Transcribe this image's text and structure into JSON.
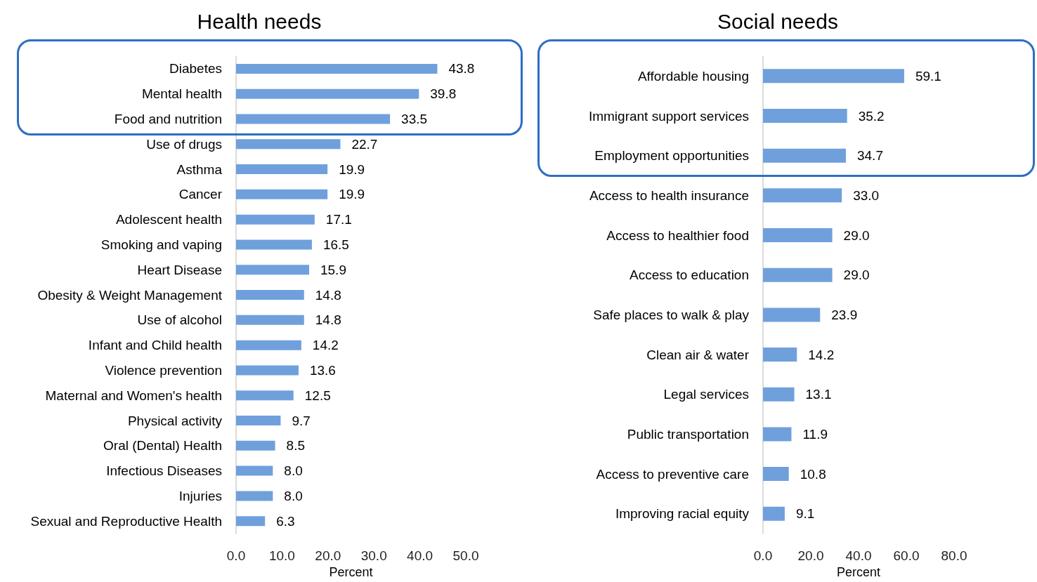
{
  "chart_data": [
    {
      "type": "bar",
      "orientation": "horizontal",
      "title": "Health needs",
      "xlabel": "Percent",
      "color": "#6fa0dc",
      "categories": [
        "Diabetes",
        "Mental health",
        "Food and nutrition",
        "Use of drugs",
        "Asthma",
        "Cancer",
        "Adolescent health",
        "Smoking and vaping",
        "Heart Disease",
        "Obesity & Weight Management",
        "Use of alcohol",
        "Infant and Child health",
        "Violence prevention",
        "Maternal and Women's health",
        "Physical activity",
        "Oral (Dental) Health",
        "Infectious Diseases",
        "Injuries",
        "Sexual and Reproductive Health"
      ],
      "values": [
        43.8,
        39.8,
        33.5,
        22.7,
        19.9,
        19.9,
        17.1,
        16.5,
        15.9,
        14.8,
        14.8,
        14.2,
        13.6,
        12.5,
        9.7,
        8.5,
        8.0,
        8.0,
        6.3
      ],
      "value_labels": [
        "43.8",
        "39.8",
        "33.5",
        "22.7",
        "19.9",
        "19.9",
        "17.1",
        "16.5",
        "15.9",
        "14.8",
        "14.8",
        "14.2",
        "13.6",
        "12.5",
        "9.7",
        "8.5",
        "8.0",
        "8.0",
        "6.3"
      ],
      "xlim": [
        0,
        50
      ],
      "xticks": [
        {
          "value": 0,
          "label": "0.0"
        },
        {
          "value": 10,
          "label": "10.0"
        },
        {
          "value": 20,
          "label": "20.0"
        },
        {
          "value": 30,
          "label": "30.0"
        },
        {
          "value": 40,
          "label": "40.0"
        },
        {
          "value": 50,
          "label": "50.0"
        }
      ]
    },
    {
      "type": "bar",
      "orientation": "horizontal",
      "title": "Social needs",
      "xlabel": "Percent",
      "color": "#6fa0dc",
      "categories": [
        "Affordable housing",
        "Immigrant support services",
        "Employment opportunities",
        "Access to health insurance",
        "Access to healthier food",
        "Access to education",
        "Safe places to walk & play",
        "Clean air & water",
        "Legal services",
        "Public transportation",
        "Access to preventive care",
        "Improving racial equity"
      ],
      "values": [
        59.1,
        35.2,
        34.7,
        33.0,
        29.0,
        29.0,
        23.9,
        14.2,
        13.1,
        11.9,
        10.8,
        9.1
      ],
      "value_labels": [
        "59.1",
        "35.2",
        "34.7",
        "33.0",
        "29.0",
        "29.0",
        "23.9",
        "14.2",
        "13.1",
        "11.9",
        "10.8",
        "9.1"
      ],
      "xlim": [
        0,
        80
      ],
      "xticks": [
        {
          "value": 0,
          "label": "0.0"
        },
        {
          "value": 20,
          "label": "20.0"
        },
        {
          "value": 40,
          "label": "40.0"
        },
        {
          "value": 60,
          "label": "60.0"
        },
        {
          "value": 80,
          "label": "80.0"
        }
      ]
    }
  ]
}
